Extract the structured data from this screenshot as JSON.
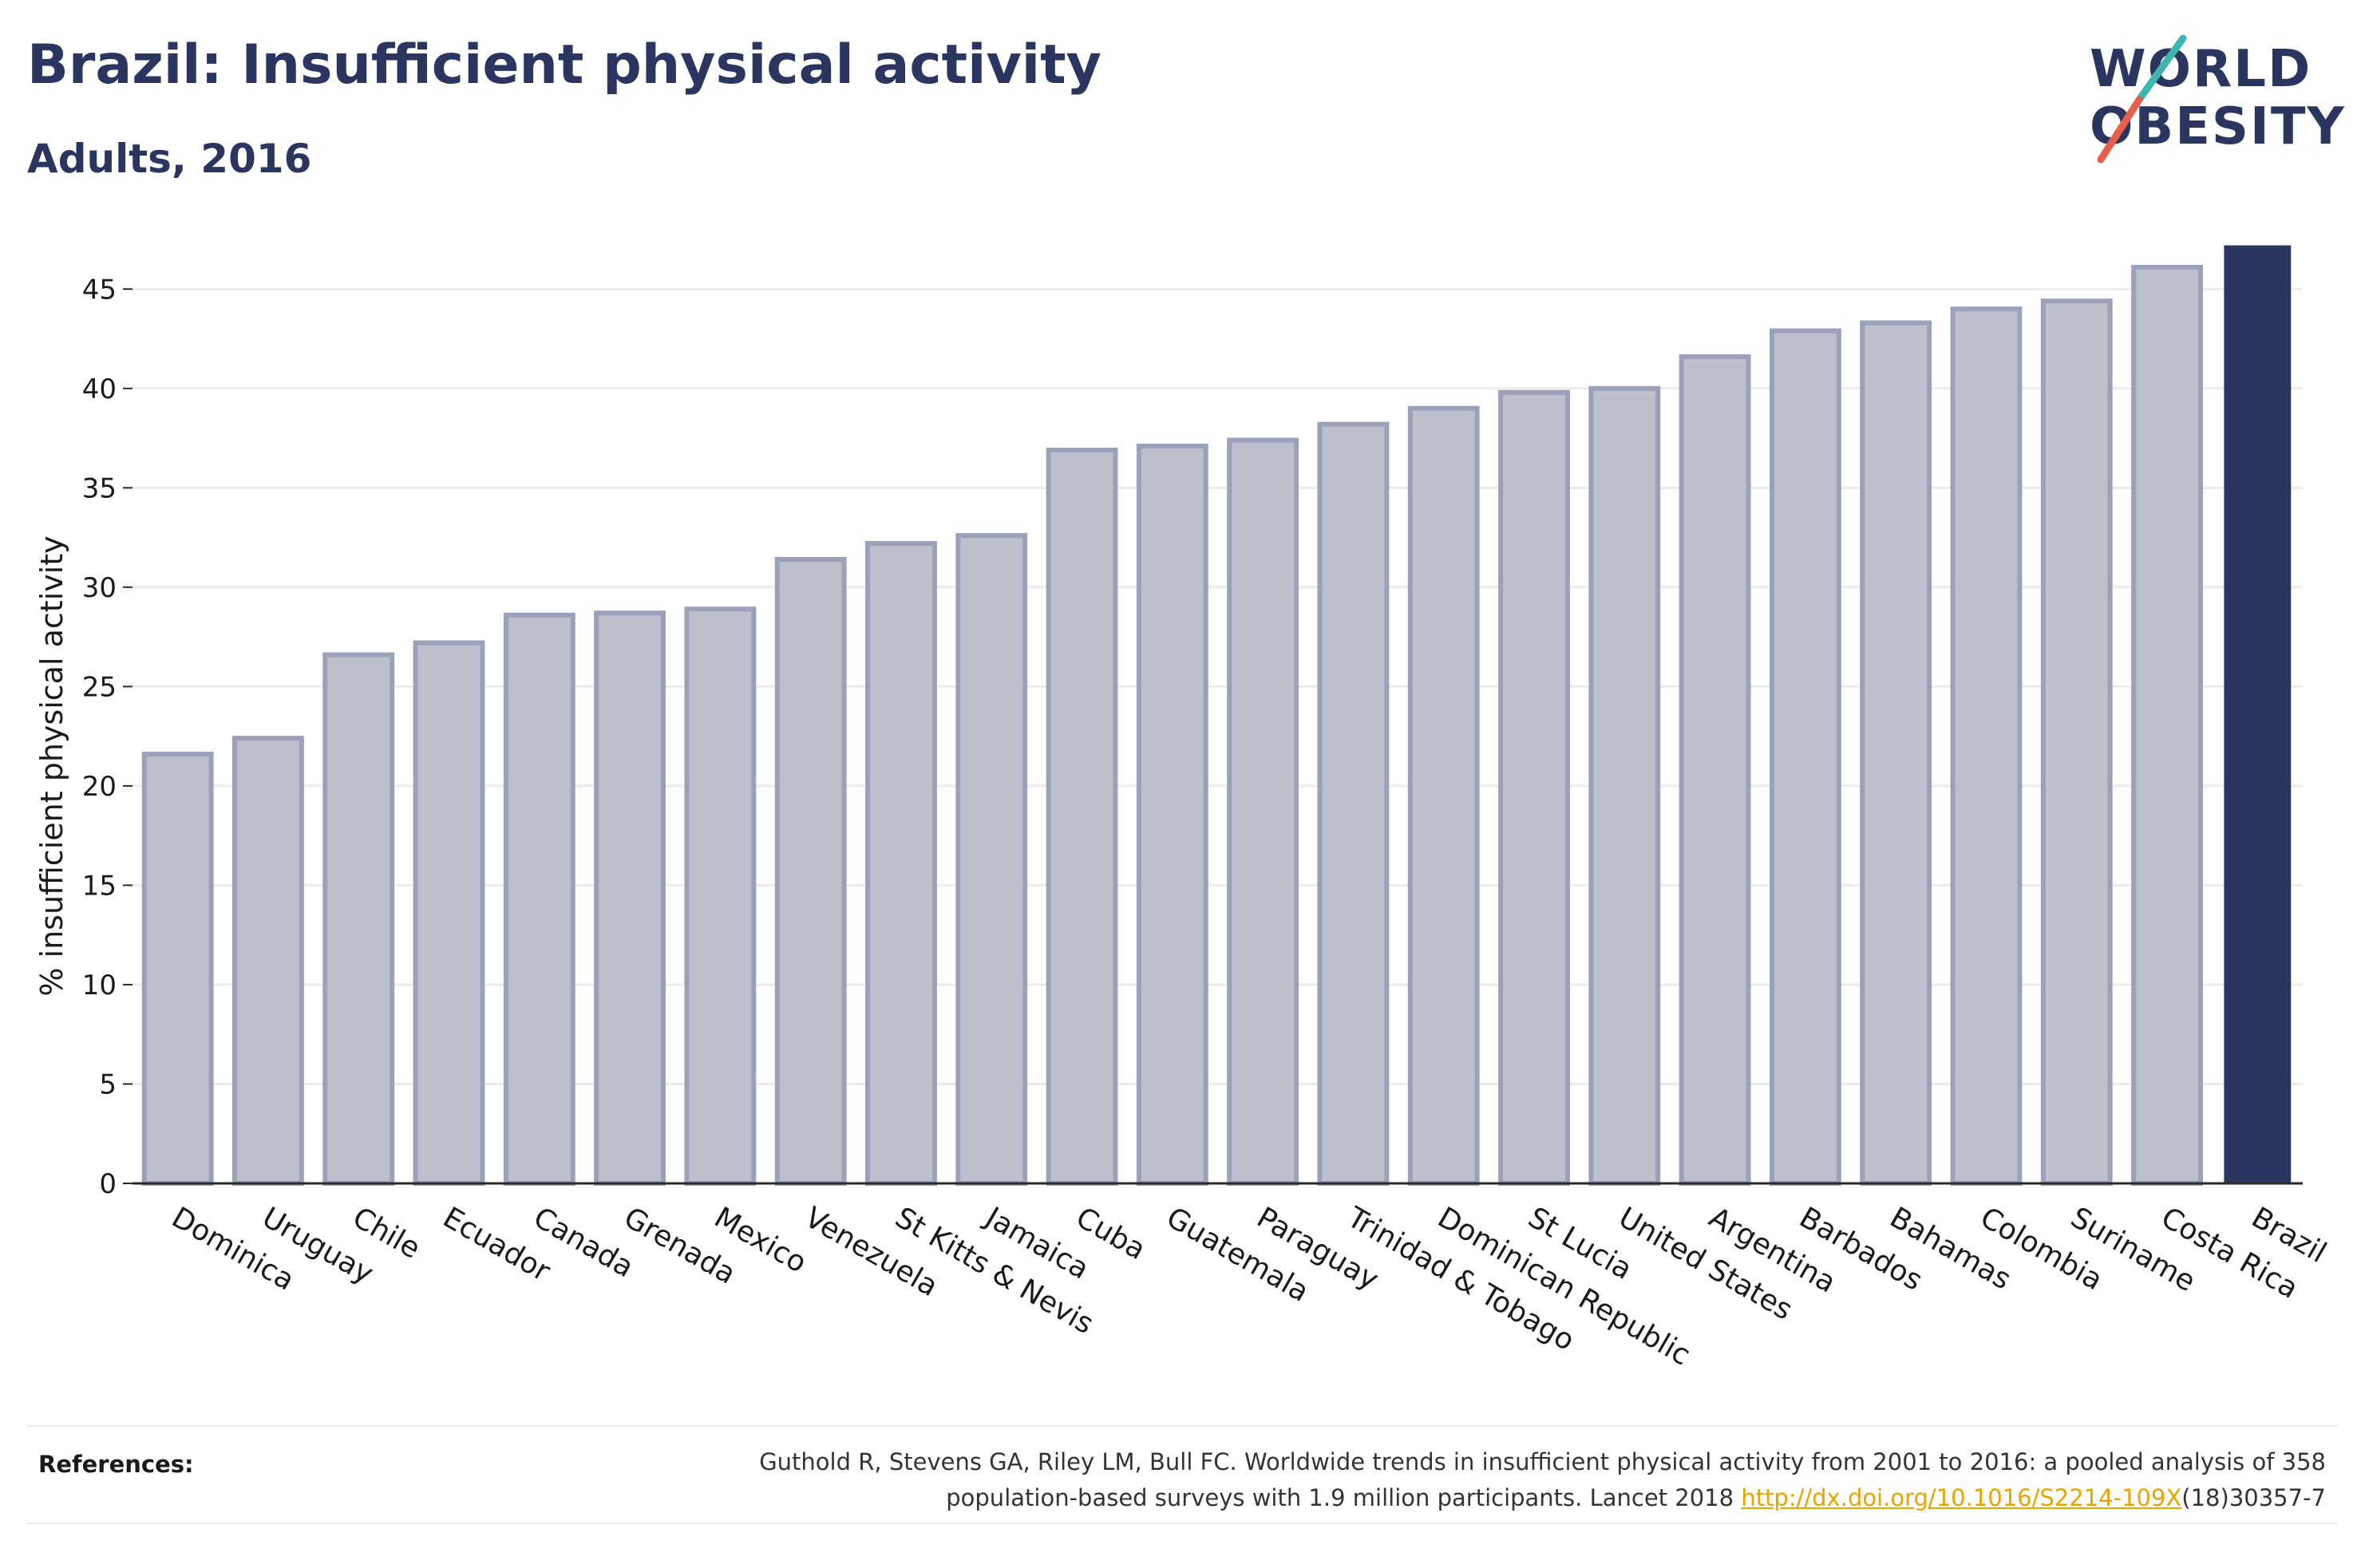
{
  "header": {
    "title": "Brazil: Insufficient physical activity",
    "subtitle": "Adults, 2016"
  },
  "logo": {
    "line1": "WORLD",
    "line2": "OBESITY",
    "slash_colors": [
      "#3fb5b0",
      "#e8604c"
    ]
  },
  "colors": {
    "highlight": "#2a3560",
    "others_fill": "#bcc0cd",
    "others_stroke": "#9aa1b8",
    "grid": "#ebebeb",
    "axis": "#2a2a2a"
  },
  "chart_data": {
    "type": "bar",
    "title": "Brazil: Insufficient physical activity",
    "subtitle": "Adults, 2016",
    "xlabel": "",
    "ylabel": "% insufficient physical activity",
    "ylim": [
      0,
      47.5
    ],
    "yticks": [
      0,
      5,
      10,
      15,
      20,
      25,
      30,
      35,
      40,
      45
    ],
    "grid": "horizontal",
    "highlight_category": "Brazil",
    "categories": [
      "Dominica",
      "Uruguay",
      "Chile",
      "Ecuador",
      "Canada",
      "Grenada",
      "Mexico",
      "Venezuela",
      "St Kitts & Nevis",
      "Jamaica",
      "Cuba",
      "Guatemala",
      "Paraguay",
      "Trinidad & Tobago",
      "Dominican Republic",
      "St Lucia",
      "United States",
      "Argentina",
      "Barbados",
      "Bahamas",
      "Colombia",
      "Suriname",
      "Costa Rica",
      "Brazil"
    ],
    "values": [
      21.6,
      22.4,
      26.6,
      27.2,
      28.6,
      28.7,
      28.9,
      31.4,
      32.2,
      32.6,
      36.9,
      37.1,
      37.4,
      38.2,
      39.0,
      39.8,
      40.0,
      41.6,
      42.9,
      43.3,
      44.0,
      44.4,
      46.1,
      47.2
    ]
  },
  "references": {
    "label": "References:",
    "line1": "Guthold R, Stevens GA, Riley LM, Bull FC. Worldwide trends in insufficient physical activity from 2001 to 2016: a pooled analysis of 358",
    "line2_prefix": "population-based surveys with 1.9 million participants. Lancet 2018 ",
    "link_text": "http://dx.doi.org/10.1016/S2214-109X",
    "line2_suffix": "(18)30357-7"
  }
}
